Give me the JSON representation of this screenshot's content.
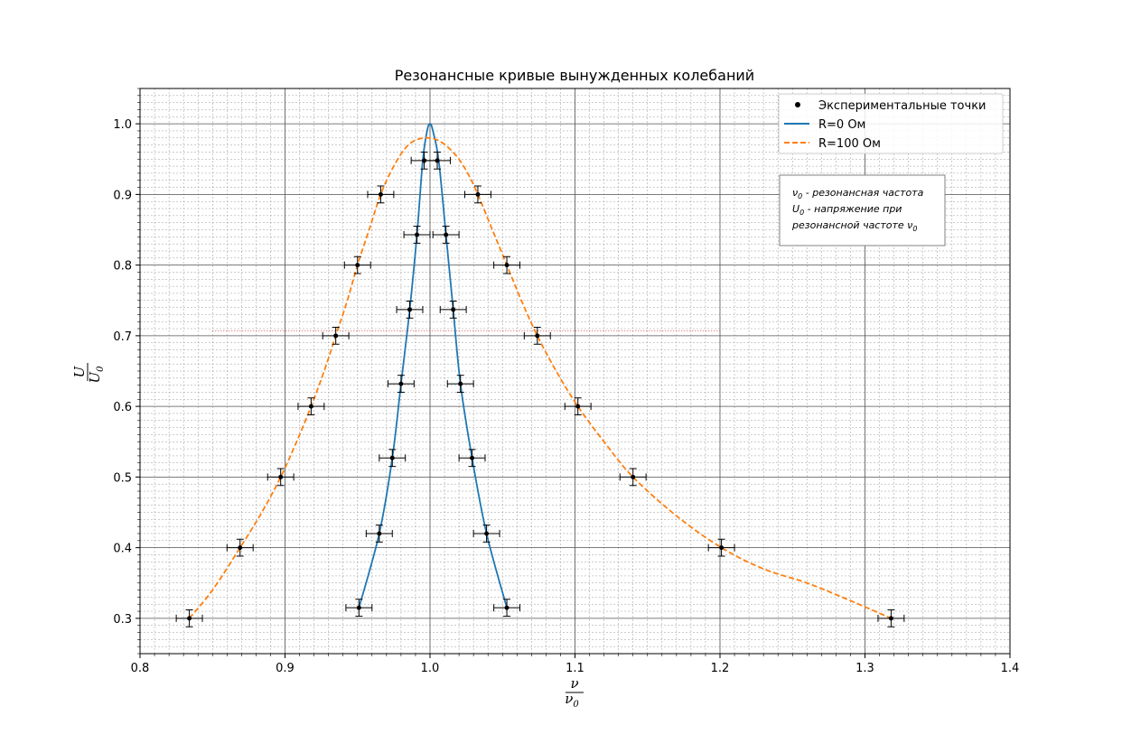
{
  "chart_data": {
    "type": "line",
    "title": "Резонансные кривые вынужденных колебаний",
    "xlabel": {
      "numerator": "ν",
      "denominator": "ν",
      "denominator_sub": "0"
    },
    "ylabel": {
      "numerator": "U",
      "denominator": "U",
      "denominator_sub": "0"
    },
    "xlim": [
      0.8,
      1.4
    ],
    "ylim": [
      0.25,
      1.05
    ],
    "x_ticks": [
      "0.8",
      "0.9",
      "1.0",
      "1.1",
      "1.2",
      "1.3",
      "1.4"
    ],
    "y_ticks": [
      "0.3",
      "0.4",
      "0.5",
      "0.6",
      "0.7",
      "0.8",
      "0.9",
      "1.0"
    ],
    "grid": true,
    "minor_grid": true,
    "legend_position": "top-right",
    "legend": [
      {
        "label": "Экспериментальные точки",
        "kind": "marker",
        "color": "#000000"
      },
      {
        "label": "R=0 Ом",
        "kind": "solid",
        "color": "#1f77b4"
      },
      {
        "label": "R=100 Ом",
        "kind": "dashed",
        "color": "#ff7f0e"
      }
    ],
    "annotation": {
      "lines": [
        {
          "symbol": "ν",
          "sub": "0",
          "text": " - резонансная частота"
        },
        {
          "symbol": "U",
          "sub": "0",
          "text": " - напряжение при"
        },
        {
          "symbol": "",
          "sub": "",
          "text": "резонансной частоте ",
          "trail_symbol": "ν",
          "trail_sub": "0"
        }
      ],
      "position": "upper-right"
    },
    "reference_line": {
      "y": 0.707,
      "x_range": [
        0.85,
        1.2
      ],
      "color": "#d62728",
      "style": "dotted"
    },
    "series": [
      {
        "name": "R=0 Ом",
        "color": "#1f77b4",
        "style": "solid",
        "curve_x": [
          0.951,
          0.965,
          0.974,
          0.98,
          0.986,
          0.991,
          0.995,
          0.998,
          1.0,
          1.002,
          1.006,
          1.011,
          1.016,
          1.021,
          1.029,
          1.039,
          1.053
        ],
        "curve_y": [
          0.315,
          0.42,
          0.527,
          0.632,
          0.737,
          0.843,
          0.948,
          0.99,
          1.0,
          0.99,
          0.948,
          0.843,
          0.737,
          0.632,
          0.527,
          0.42,
          0.315
        ],
        "points": [
          {
            "x": 0.951,
            "y": 0.315
          },
          {
            "x": 0.965,
            "y": 0.42
          },
          {
            "x": 0.974,
            "y": 0.527
          },
          {
            "x": 0.98,
            "y": 0.632
          },
          {
            "x": 0.986,
            "y": 0.737
          },
          {
            "x": 0.991,
            "y": 0.843
          },
          {
            "x": 0.996,
            "y": 0.948
          },
          {
            "x": 1.005,
            "y": 0.948
          },
          {
            "x": 1.011,
            "y": 0.843
          },
          {
            "x": 1.016,
            "y": 0.737
          },
          {
            "x": 1.021,
            "y": 0.632
          },
          {
            "x": 1.029,
            "y": 0.527
          },
          {
            "x": 1.039,
            "y": 0.42
          },
          {
            "x": 1.053,
            "y": 0.315
          }
        ],
        "xerr": 0.009,
        "yerr": 0.012
      },
      {
        "name": "R=100 Ом",
        "color": "#ff7f0e",
        "style": "dashed",
        "curve_x": [
          0.834,
          0.85,
          0.869,
          0.884,
          0.897,
          0.908,
          0.918,
          0.927,
          0.935,
          0.943,
          0.95,
          0.958,
          0.966,
          0.975,
          0.985,
          0.996,
          1.007,
          1.018,
          1.026,
          1.033,
          1.043,
          1.053,
          1.063,
          1.074,
          1.087,
          1.102,
          1.12,
          1.14,
          1.17,
          1.201,
          1.23,
          1.26,
          1.29,
          1.318
        ],
        "curve_y": [
          0.3,
          0.34,
          0.4,
          0.45,
          0.5,
          0.55,
          0.6,
          0.65,
          0.7,
          0.75,
          0.8,
          0.85,
          0.9,
          0.94,
          0.97,
          0.98,
          0.975,
          0.955,
          0.93,
          0.9,
          0.85,
          0.8,
          0.75,
          0.7,
          0.65,
          0.6,
          0.55,
          0.5,
          0.445,
          0.4,
          0.37,
          0.35,
          0.325,
          0.3
        ],
        "points": [
          {
            "x": 0.834,
            "y": 0.3
          },
          {
            "x": 0.869,
            "y": 0.4
          },
          {
            "x": 0.897,
            "y": 0.5
          },
          {
            "x": 0.918,
            "y": 0.6
          },
          {
            "x": 0.935,
            "y": 0.7
          },
          {
            "x": 0.95,
            "y": 0.8
          },
          {
            "x": 0.966,
            "y": 0.9
          },
          {
            "x": 1.033,
            "y": 0.9
          },
          {
            "x": 1.053,
            "y": 0.8
          },
          {
            "x": 1.074,
            "y": 0.7
          },
          {
            "x": 1.102,
            "y": 0.6
          },
          {
            "x": 1.14,
            "y": 0.5
          },
          {
            "x": 1.201,
            "y": 0.4
          },
          {
            "x": 1.318,
            "y": 0.3
          }
        ],
        "xerr": 0.009,
        "yerr": 0.012
      }
    ]
  }
}
